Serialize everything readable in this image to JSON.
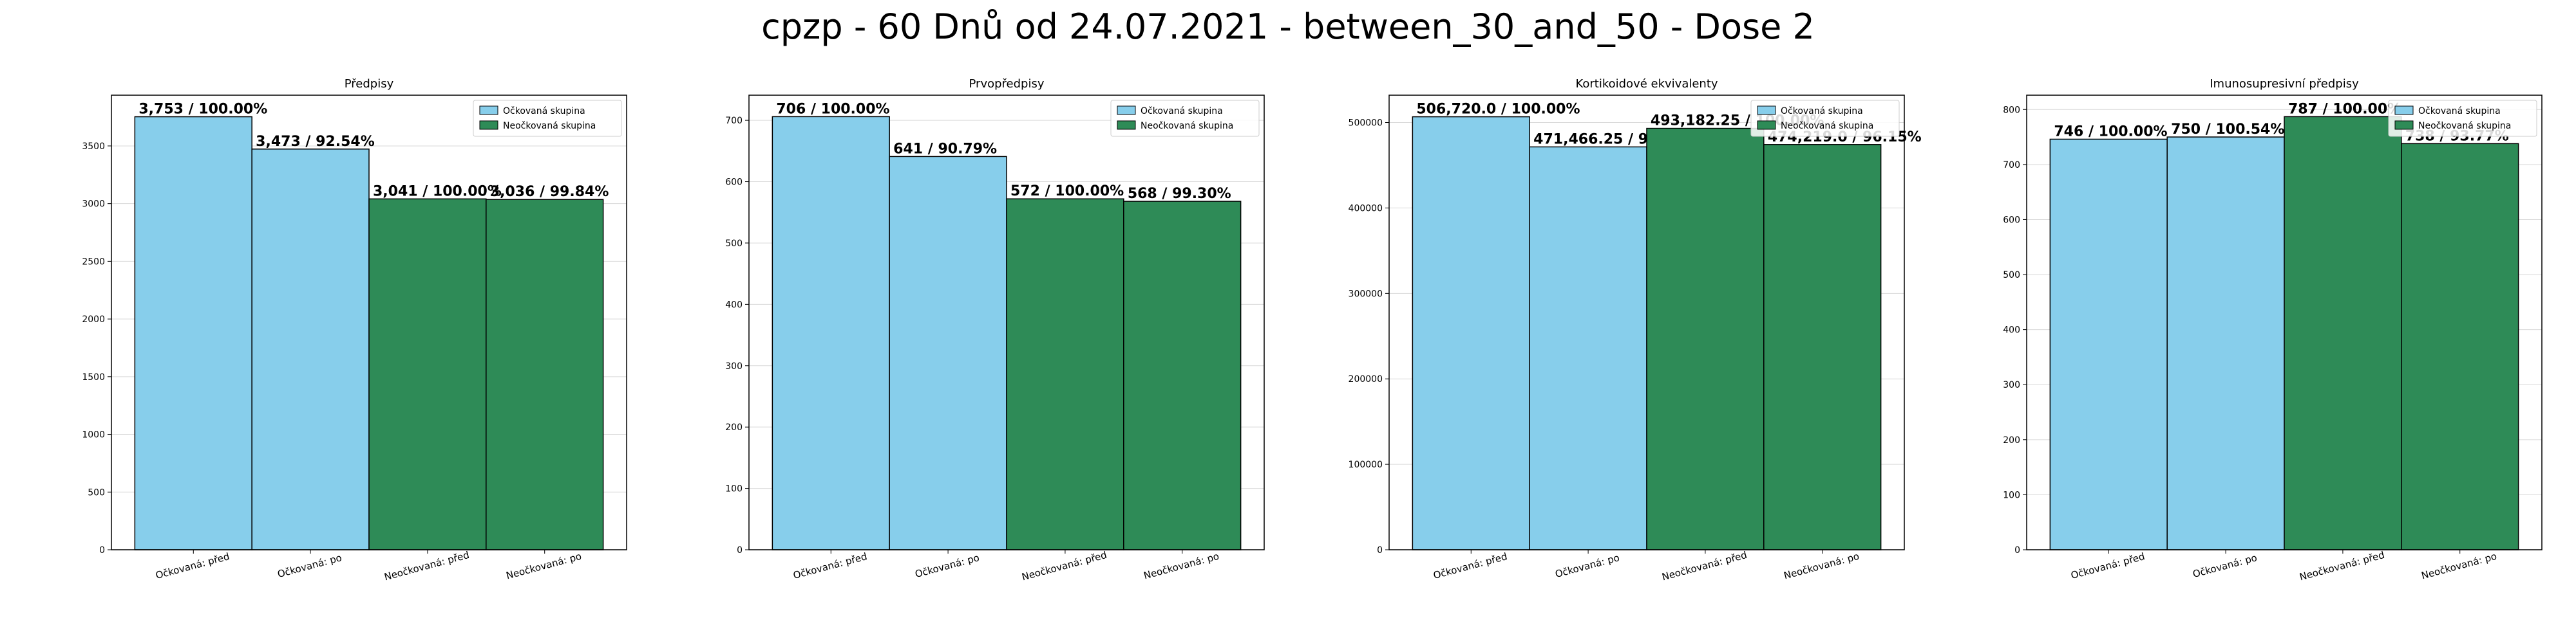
{
  "title": "cpzp - 60 Dnů od 24.07.2021 - between_30_and_50 - Dose 2",
  "colors": {
    "vaccinated": "#87ceeb",
    "unvaccinated": "#2e8b57",
    "edge": "#000000",
    "grid": "#d9d9d9"
  },
  "chart_data": [
    {
      "type": "bar",
      "title": "Předpisy",
      "categories": [
        "Očkovaná: před",
        "Očkovaná: po",
        "Neočkovaná: před",
        "Neočkovaná: po"
      ],
      "values": [
        3753,
        3473,
        3041,
        3036
      ],
      "bar_labels": [
        "3,753 / 100.00%",
        "3,473 / 92.54%",
        "3,041 / 100.00%",
        "3,036 / 99.84%"
      ],
      "bar_groups": [
        "vaccinated",
        "vaccinated",
        "unvaccinated",
        "unvaccinated"
      ],
      "legend": [
        "Očkovaná skupina",
        "Neočkovaná skupina"
      ],
      "legend_position": "top-right",
      "ylim": [
        0,
        3940
      ],
      "yticks": [
        0,
        500,
        1000,
        1500,
        2000,
        2500,
        3000,
        3500
      ],
      "grid": true
    },
    {
      "type": "bar",
      "title": "Prvopředpisy",
      "categories": [
        "Očkovaná: před",
        "Očkovaná: po",
        "Neočkovaná: před",
        "Neočkovaná: po"
      ],
      "values": [
        706,
        641,
        572,
        568
      ],
      "bar_labels": [
        "706 / 100.00%",
        "641 / 90.79%",
        "572 / 100.00%",
        "568 / 99.30%"
      ],
      "bar_groups": [
        "vaccinated",
        "vaccinated",
        "unvaccinated",
        "unvaccinated"
      ],
      "legend": [
        "Očkovaná skupina",
        "Neočkovaná skupina"
      ],
      "legend_position": "top-right",
      "ylim": [
        0,
        741
      ],
      "yticks": [
        0,
        100,
        200,
        300,
        400,
        500,
        600,
        700
      ],
      "grid": true
    },
    {
      "type": "bar",
      "title": "Kortikoidové ekvivalenty",
      "categories": [
        "Očkovaná: před",
        "Očkovaná: po",
        "Neočkovaná: před",
        "Neočkovaná: po"
      ],
      "values": [
        506720.0,
        471466.25,
        493182.25,
        474219.0
      ],
      "bar_labels": [
        "506,720.0 / 100.00%",
        "471,466.25 / 93.04%",
        "493,182.25 / 100.00%",
        "474,219.0 / 96.15%"
      ],
      "bar_groups": [
        "vaccinated",
        "vaccinated",
        "unvaccinated",
        "unvaccinated"
      ],
      "legend": [
        "Očkovaná skupina",
        "Neočkovaná skupina"
      ],
      "legend_position": "top-right",
      "ylim": [
        0,
        532000
      ],
      "yticks": [
        0,
        100000,
        200000,
        300000,
        400000,
        500000
      ],
      "grid": true
    },
    {
      "type": "bar",
      "title": "Imunosupresivní předpisy",
      "categories": [
        "Očkovaná: před",
        "Očkovaná: po",
        "Neočkovaná: před",
        "Neočkovaná: po"
      ],
      "values": [
        746,
        750,
        787,
        738
      ],
      "bar_labels": [
        "746 / 100.00%",
        "750 / 100.54%",
        "787 / 100.00%",
        "738 / 93.77%"
      ],
      "bar_groups": [
        "vaccinated",
        "vaccinated",
        "unvaccinated",
        "unvaccinated"
      ],
      "legend": [
        "Očkovaná skupina",
        "Neočkovaná skupina"
      ],
      "legend_position": "top-right",
      "ylim": [
        0,
        826
      ],
      "yticks": [
        0,
        100,
        200,
        300,
        400,
        500,
        600,
        700,
        800
      ],
      "grid": true
    }
  ]
}
